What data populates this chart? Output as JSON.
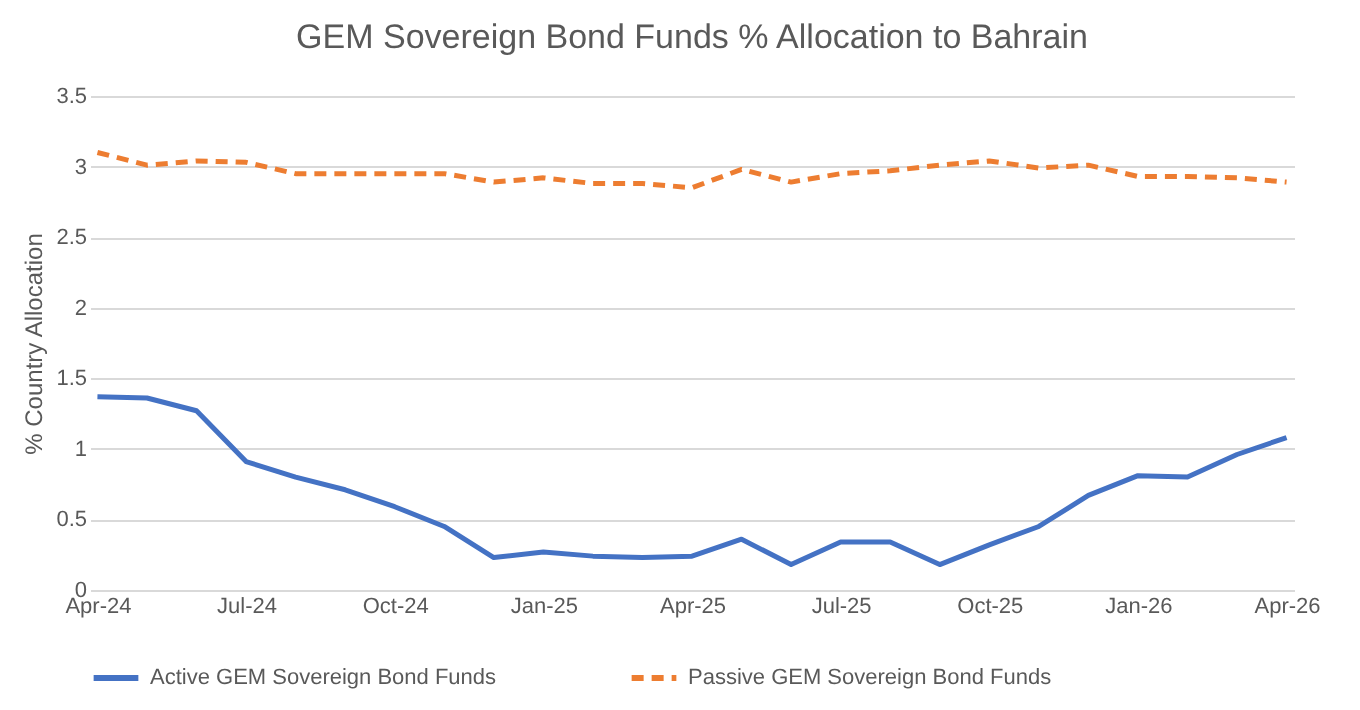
{
  "chart_data": {
    "type": "line",
    "title": "GEM Sovereign Bond Funds % Allocation to Bahrain",
    "ylabel": "% Country Allocation",
    "categories": [
      "Apr-24",
      null,
      null,
      "Jul-24",
      null,
      null,
      "Oct-24",
      null,
      null,
      "Jan-25",
      null,
      null,
      "Apr-25",
      null,
      null,
      "Jul-25",
      null,
      null,
      "Oct-25",
      null,
      null,
      "Jan-26",
      null,
      null,
      "Apr-26"
    ],
    "series": [
      {
        "name": "Active GEM Sovereign Bond Funds",
        "color": "#4472c4",
        "line_style": "solid",
        "values": [
          1.37,
          1.36,
          1.27,
          0.91,
          0.8,
          0.71,
          0.59,
          0.45,
          0.23,
          0.27,
          0.24,
          0.23,
          0.24,
          0.36,
          0.18,
          0.34,
          0.34,
          0.18,
          0.32,
          0.45,
          0.67,
          0.81,
          0.8,
          0.96,
          1.08
        ]
      },
      {
        "name": "Passive GEM Sovereign Bond Funds",
        "color": "#ed7d31",
        "line_style": "dashed",
        "values": [
          3.1,
          3.01,
          3.04,
          3.03,
          2.95,
          2.95,
          2.95,
          2.95,
          2.89,
          2.92,
          2.88,
          2.88,
          2.85,
          2.98,
          2.89,
          2.95,
          2.97,
          3.01,
          3.04,
          2.99,
          3.01,
          2.93,
          2.93,
          2.92,
          2.89
        ]
      }
    ],
    "ylim": [
      0,
      3.5
    ],
    "yticks": [
      0,
      0.5,
      1,
      1.5,
      2,
      2.5,
      3,
      3.5
    ],
    "grid": "y",
    "legend": "bottom"
  }
}
